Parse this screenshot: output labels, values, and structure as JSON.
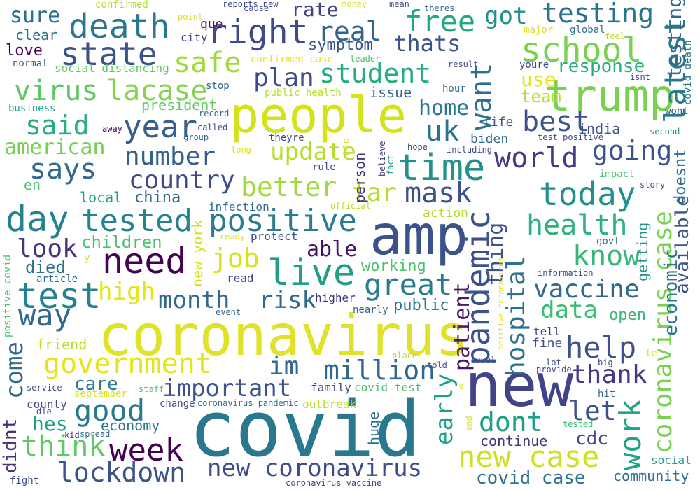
{
  "words": [
    {
      "text": "covid",
      "color": "#2a788e"
    },
    {
      "text": "coronavirus",
      "color": "#e0e22a"
    },
    {
      "text": "amp",
      "color": "#3b528b"
    },
    {
      "text": "people",
      "color": "#d3e21b"
    },
    {
      "text": "new",
      "color": "#414487"
    },
    {
      "text": "trump",
      "color": "#7ad151"
    },
    {
      "text": "death",
      "color": "#2a788e"
    },
    {
      "text": "right",
      "color": "#3e4a89"
    },
    {
      "text": "state",
      "color": "#3b528b"
    },
    {
      "text": "time",
      "color": "#21918c"
    },
    {
      "text": "need",
      "color": "#440154"
    },
    {
      "text": "live",
      "color": "#1fa187"
    },
    {
      "text": "day",
      "color": "#26828e"
    },
    {
      "text": "test",
      "color": "#26828e"
    },
    {
      "text": "school",
      "color": "#7ad151"
    },
    {
      "text": "tested",
      "color": "#26828e"
    },
    {
      "text": "positive",
      "color": "#287d8e"
    },
    {
      "text": "government",
      "color": "#e5e419"
    },
    {
      "text": "new case",
      "color": "#cde11d"
    },
    {
      "text": "new coronavirus",
      "color": "#3e4a89"
    },
    {
      "text": "today",
      "color": "#21918c"
    },
    {
      "text": "great",
      "color": "#287c8e"
    },
    {
      "text": "pandemic",
      "color": "#3b528b"
    },
    {
      "text": "coronavirus case",
      "color": "#7ad151"
    },
    {
      "text": "week",
      "color": "#440154"
    },
    {
      "text": "lockdown",
      "color": "#3b528b"
    },
    {
      "text": "think",
      "color": "#5ec962"
    },
    {
      "text": "good",
      "color": "#29798e"
    },
    {
      "text": "way",
      "color": "#31688e"
    },
    {
      "text": "million",
      "color": "#31688e"
    },
    {
      "text": "important",
      "color": "#3b528b"
    },
    {
      "text": "help",
      "color": "#3b528b"
    },
    {
      "text": "work",
      "color": "#20a386"
    },
    {
      "text": "free",
      "color": "#22a884"
    },
    {
      "text": "testing",
      "color": "#2c728e"
    },
    {
      "text": "got",
      "color": "#21908d"
    },
    {
      "text": "real",
      "color": "#32658e"
    },
    {
      "text": "student",
      "color": "#27ad81"
    },
    {
      "text": "plan",
      "color": "#3e4a89"
    },
    {
      "text": "safe",
      "color": "#a0da39"
    },
    {
      "text": "virus",
      "color": "#5ec962"
    },
    {
      "text": "lacase",
      "color": "#84d44b"
    },
    {
      "text": "said",
      "color": "#27ad81"
    },
    {
      "text": "year",
      "color": "#355f8d"
    },
    {
      "text": "american",
      "color": "#75d054"
    },
    {
      "text": "says",
      "color": "#31688e"
    },
    {
      "text": "number",
      "color": "#355f8d"
    },
    {
      "text": "country",
      "color": "#3e4a89"
    },
    {
      "text": "update",
      "color": "#b5de2b"
    },
    {
      "text": "better",
      "color": "#9fda3a"
    },
    {
      "text": "mask",
      "color": "#3b528b"
    },
    {
      "text": "far",
      "color": "#b5de2b"
    },
    {
      "text": "uk",
      "color": "#2c728e"
    },
    {
      "text": "best",
      "color": "#3b528b"
    },
    {
      "text": "world",
      "color": "#443983"
    },
    {
      "text": "going",
      "color": "#3b528b"
    },
    {
      "text": "latest",
      "color": "#2a788e"
    },
    {
      "text": "testing",
      "color": "#31688e"
    },
    {
      "text": "want",
      "color": "#2c728e"
    },
    {
      "text": "health",
      "color": "#2db27d"
    },
    {
      "text": "know",
      "color": "#34b679"
    },
    {
      "text": "vaccine",
      "color": "#31688e"
    },
    {
      "text": "data",
      "color": "#3dbc74"
    },
    {
      "text": "thank",
      "color": "#443983"
    },
    {
      "text": "let",
      "color": "#3b528b"
    },
    {
      "text": "dont",
      "color": "#1f9e89"
    },
    {
      "text": "early",
      "color": "#1fa187"
    },
    {
      "text": "hospital",
      "color": "#2c728e"
    },
    {
      "text": "thing",
      "color": "#3b528b"
    },
    {
      "text": "patient",
      "color": "#48186a"
    },
    {
      "text": "covid case",
      "color": "#2c728e"
    },
    {
      "text": "im",
      "color": "#31688e"
    },
    {
      "text": "job",
      "color": "#d8e219"
    },
    {
      "text": "risk",
      "color": "#31688e"
    },
    {
      "text": "month",
      "color": "#31688e"
    },
    {
      "text": "high",
      "color": "#e5e419"
    },
    {
      "text": "look",
      "color": "#46327e"
    },
    {
      "text": "able",
      "color": "#471063"
    },
    {
      "text": "come",
      "color": "#31688e"
    },
    {
      "text": "hes",
      "color": "#1fa187"
    },
    {
      "text": "care",
      "color": "#287d8e"
    },
    {
      "text": "children",
      "color": "#4ac16d"
    },
    {
      "text": "died",
      "color": "#2c728e"
    },
    {
      "text": "economic",
      "color": "#2a788e"
    },
    {
      "text": "available",
      "color": "#3b528b"
    },
    {
      "text": "home",
      "color": "#2a788e"
    },
    {
      "text": "use",
      "color": "#e7e419"
    },
    {
      "text": "team",
      "color": "#b5de2b"
    },
    {
      "text": "response",
      "color": "#29af7f"
    },
    {
      "text": "covid death",
      "color": "#2c728e"
    },
    {
      "text": "sure",
      "color": "#2c728e"
    },
    {
      "text": "rate",
      "color": "#414487"
    },
    {
      "text": "thats",
      "color": "#3b528b"
    },
    {
      "text": "symptom",
      "color": "#3b528b"
    },
    {
      "text": "love",
      "color": "#440154"
    },
    {
      "text": "clear",
      "color": "#2c728e"
    },
    {
      "text": "president",
      "color": "#5ec962"
    },
    {
      "text": "issue",
      "color": "#31688e"
    },
    {
      "text": "india",
      "color": "#3b528b"
    },
    {
      "text": "biden",
      "color": "#31688e"
    },
    {
      "text": "life",
      "color": "#3b528b"
    },
    {
      "text": "china",
      "color": "#31688e"
    },
    {
      "text": "local",
      "color": "#1fa187"
    },
    {
      "text": "en",
      "color": "#4ac16d"
    },
    {
      "text": "new york",
      "color": "#d8e219"
    },
    {
      "text": "person",
      "color": "#46327e"
    },
    {
      "text": "working",
      "color": "#4ac16d"
    },
    {
      "text": "public",
      "color": "#2a788e"
    },
    {
      "text": "open",
      "color": "#35b779"
    },
    {
      "text": "getting",
      "color": "#21918c"
    },
    {
      "text": "doesnt",
      "color": "#2c728e"
    },
    {
      "text": "infection",
      "color": "#31688e"
    },
    {
      "text": "protect",
      "color": "#3e4a89"
    },
    {
      "text": "read",
      "color": "#3e4a89"
    },
    {
      "text": "friend",
      "color": "#b5de2b"
    },
    {
      "text": "economy",
      "color": "#2a788e"
    },
    {
      "text": "continue",
      "color": "#46327e"
    },
    {
      "text": "cdc",
      "color": "#3e4a89"
    },
    {
      "text": "huge",
      "color": "#2c728e"
    },
    {
      "text": "fine",
      "color": "#3e4a89"
    },
    {
      "text": "tell",
      "color": "#3e4a89"
    },
    {
      "text": "community",
      "color": "#2c728e"
    },
    {
      "text": "social",
      "color": "#1fa187"
    },
    {
      "text": "county",
      "color": "#3e4a89"
    },
    {
      "text": "didnt",
      "color": "#46327e"
    },
    {
      "text": "family",
      "color": "#3e4a89"
    },
    {
      "text": "covid test",
      "color": "#4ac16d"
    },
    {
      "text": "outbreak",
      "color": "#b5de2b"
    },
    {
      "text": "social distancing",
      "color": "#5ec962"
    },
    {
      "text": "positive covid",
      "color": "#4ac16d"
    },
    {
      "text": "confirmed case",
      "color": "#e7e419"
    },
    {
      "text": "public health",
      "color": "#b5de2b"
    },
    {
      "text": "que",
      "color": "#471063"
    },
    {
      "text": "city",
      "color": "#414487"
    },
    {
      "text": "normal",
      "color": "#355f8d"
    },
    {
      "text": "business",
      "color": "#1fa187"
    },
    {
      "text": "confirmed",
      "color": "#b5de2b"
    },
    {
      "text": "global",
      "color": "#2c728e"
    },
    {
      "text": "major",
      "color": "#d8e219"
    },
    {
      "text": "leader",
      "color": "#4ac16d"
    },
    {
      "text": "hour",
      "color": "#31688e"
    },
    {
      "text": "result",
      "color": "#3e4a89"
    },
    {
      "text": "youre",
      "color": "#3e4a89"
    },
    {
      "text": "isnt",
      "color": "#3e4a89"
    },
    {
      "text": "feel",
      "color": "#b5de2b"
    },
    {
      "text": "wont",
      "color": "#3e4a89"
    },
    {
      "text": "second",
      "color": "#21918c"
    },
    {
      "text": "stop",
      "color": "#31688e"
    },
    {
      "text": "record",
      "color": "#31688e"
    },
    {
      "text": "called",
      "color": "#3e4a89"
    },
    {
      "text": "theyre",
      "color": "#3e4a89"
    },
    {
      "text": "rule",
      "color": "#3e4a89"
    },
    {
      "text": "impact",
      "color": "#4ac16d"
    },
    {
      "text": "story",
      "color": "#3e4a89"
    },
    {
      "text": "govt",
      "color": "#31688e"
    },
    {
      "text": "including",
      "color": "#3e4a89"
    },
    {
      "text": "hope",
      "color": "#3e4a89"
    },
    {
      "text": "test positive",
      "color": "#3e4a89"
    },
    {
      "text": "fact",
      "color": "#1fa187"
    },
    {
      "text": "believe",
      "color": "#46327e"
    },
    {
      "text": "old",
      "color": "#d8e219"
    },
    {
      "text": "group",
      "color": "#31688e"
    },
    {
      "text": "long",
      "color": "#d8e219"
    },
    {
      "text": "away",
      "color": "#440154"
    },
    {
      "text": "official",
      "color": "#b5de2b"
    },
    {
      "text": "cause",
      "color": "#3e4a89"
    },
    {
      "text": "ready",
      "color": "#d8e219"
    },
    {
      "text": "point",
      "color": "#d8e219"
    },
    {
      "text": "reports new",
      "color": "#3e4a89"
    },
    {
      "text": "money",
      "color": "#d8e219"
    },
    {
      "text": "mean",
      "color": "#3e4a89"
    },
    {
      "text": "theres",
      "color": "#31688e"
    },
    {
      "text": "action",
      "color": "#b5de2b"
    },
    {
      "text": "information",
      "color": "#3e4a89"
    },
    {
      "text": "positive coronavirus",
      "color": "#d8e219"
    },
    {
      "text": "higher",
      "color": "#46327e"
    },
    {
      "text": "nearly",
      "color": "#31688e"
    },
    {
      "text": "event",
      "color": "#31688e"
    },
    {
      "text": "article",
      "color": "#31688e"
    },
    {
      "text": "y",
      "color": "#d8e219"
    },
    {
      "text": "le",
      "color": "#d8e219"
    },
    {
      "text": "big",
      "color": "#3e4a89"
    },
    {
      "text": "lot",
      "color": "#3e4a89"
    },
    {
      "text": "provide",
      "color": "#3e4a89"
    },
    {
      "text": "level",
      "color": "#3e4a89"
    },
    {
      "text": "told",
      "color": "#3e4a89"
    },
    {
      "text": "place",
      "color": "#b5de2b"
    },
    {
      "text": "hit",
      "color": "#31688e"
    },
    {
      "text": "tested",
      "color": "#3dbc74"
    },
    {
      "text": "end",
      "color": "#d8e219"
    },
    {
      "text": "staff",
      "color": "#4ac16d"
    },
    {
      "text": "change",
      "color": "#3e4a89"
    },
    {
      "text": "september",
      "color": "#d8e219"
    },
    {
      "text": "service",
      "color": "#3e4a89"
    },
    {
      "text": "die",
      "color": "#3e4a89"
    },
    {
      "text": "kid",
      "color": "#46327e"
    },
    {
      "text": "spread",
      "color": "#31688e"
    },
    {
      "text": "coronavirus pandemic",
      "color": "#31688e"
    },
    {
      "text": "coronavirus vaccine",
      "color": "#3e4a89"
    },
    {
      "text": "fight",
      "color": "#3e4a89"
    },
    {
      "text": "e",
      "color": "#d8e219"
    }
  ]
}
